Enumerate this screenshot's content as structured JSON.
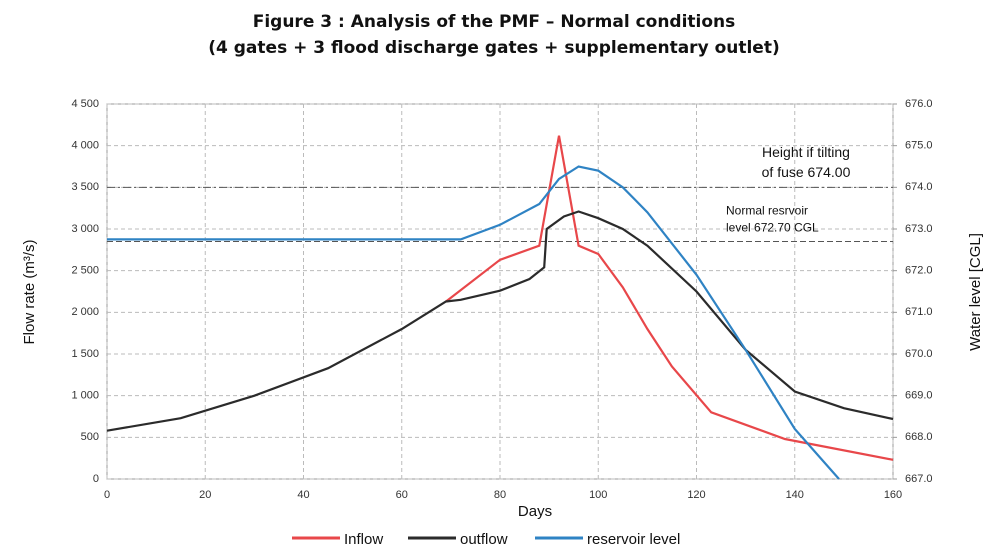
{
  "chart_data": {
    "type": "line",
    "title": "Figure 3 : Analysis of the PMF – Normal conditions",
    "subtitle": "(4 gates + 3 flood discharge gates + supplementary outlet)",
    "x_label": "Days",
    "y_label": "Flow rate (m³/s)",
    "y2_label": "Water level [CGL]",
    "xlim": [
      0,
      160
    ],
    "xticks": [
      0,
      20,
      40,
      60,
      80,
      100,
      120,
      140,
      160
    ],
    "ylim": [
      0,
      4500
    ],
    "yticks": [
      0,
      500,
      {
        "value": 1000,
        "label": "1 000"
      },
      {
        "value": 1500,
        "label": "1 500"
      },
      {
        "value": 2000,
        "label": "2 000"
      },
      {
        "value": 2500,
        "label": "2 500"
      },
      {
        "value": 3000,
        "label": "3 000"
      },
      {
        "value": 3500,
        "label": "3 500"
      },
      {
        "value": 4000,
        "label": "4 000"
      },
      {
        "value": 4500,
        "label": "4 500"
      }
    ],
    "y2lim": [
      667,
      676
    ],
    "y2ticks": [
      {
        "value": 667,
        "label": "667.0"
      },
      {
        "value": 668,
        "label": "668.0"
      },
      {
        "value": 669,
        "label": "669.0"
      },
      {
        "value": 670,
        "label": "670.0"
      },
      {
        "value": 671,
        "label": "671.0"
      },
      {
        "value": 672,
        "label": "672.0"
      },
      {
        "value": 673,
        "label": "673.0"
      },
      {
        "value": 674,
        "label": "674.0"
      },
      {
        "value": 675,
        "label": "675.0"
      },
      {
        "value": 676,
        "label": "676.0"
      }
    ],
    "grid": true,
    "legend": "bottom",
    "reference_lines": [
      {
        "value": 674.0,
        "axis": "y2",
        "label_lines": [
          "Height if tilting",
          "of fuse 674.00"
        ]
      },
      {
        "value": 672.7,
        "axis": "y2",
        "label_lines": [
          "Normal resrvoir",
          "level 672.70 CGL"
        ]
      }
    ],
    "series": [
      {
        "name": "Inflow",
        "color": "#e8474a",
        "x": [
          69,
          80,
          88,
          92,
          96,
          100,
          105,
          110,
          115,
          123,
          138,
          160
        ],
        "values": [
          2130,
          2630,
          2800,
          4120,
          2800,
          2700,
          2300,
          1800,
          1350,
          800,
          480,
          230
        ]
      },
      {
        "name": "outflow",
        "color": "#2b2b2b",
        "x": [
          0,
          15,
          30,
          45,
          60,
          69,
          72,
          80,
          86,
          89,
          89.5,
          93,
          96,
          100,
          105,
          110,
          120,
          130,
          140,
          150,
          160
        ],
        "values": [
          580,
          730,
          1000,
          1330,
          1800,
          2130,
          2150,
          2260,
          2400,
          2540,
          3000,
          3150,
          3210,
          3130,
          3000,
          2800,
          2250,
          1550,
          1050,
          850,
          720
        ]
      },
      {
        "name": "reservoir level",
        "color": "#2f83c4",
        "axis": "y2",
        "x": [
          0,
          72,
          80,
          88,
          92,
          96,
          100,
          105,
          110,
          120,
          130,
          140,
          149
        ],
        "values": [
          672.75,
          672.75,
          673.1,
          673.6,
          674.2,
          674.5,
          674.4,
          674.0,
          673.4,
          671.9,
          670.1,
          668.2,
          667.0
        ]
      }
    ]
  }
}
